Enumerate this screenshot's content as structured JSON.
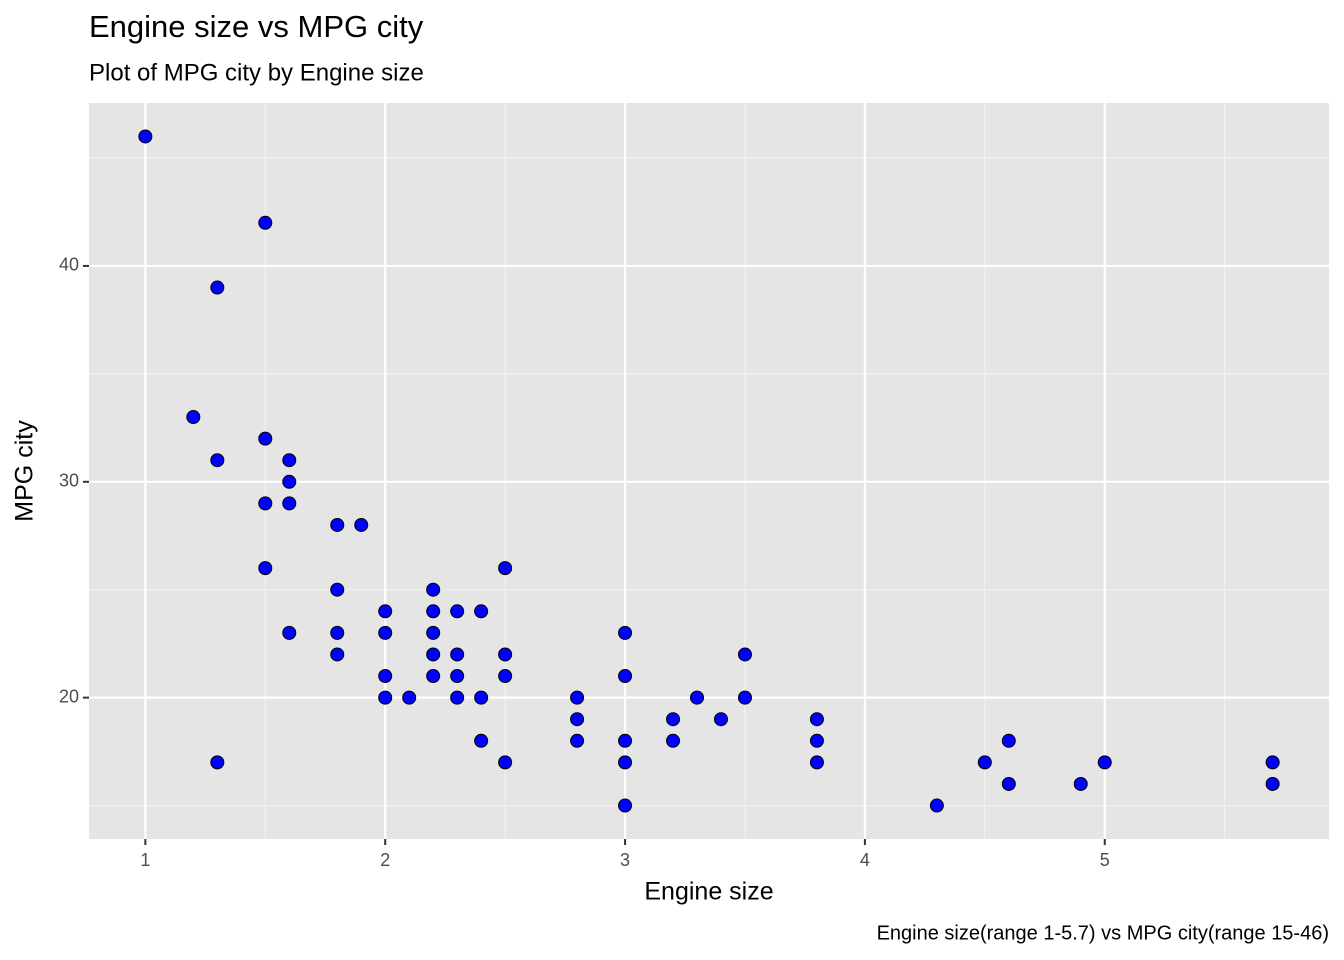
{
  "chart_data": {
    "type": "scatter",
    "title": "Engine size vs MPG city",
    "subtitle": "Plot of MPG city by Engine size",
    "x_label": "Engine size",
    "y_label": "MPG city",
    "caption": "Engine size(range 1-5.7) vs MPG city(range 15-46)",
    "color": "#0000ff",
    "edge_color": "#000000",
    "grid": true,
    "xlim": [
      0.765,
      5.935
    ],
    "ylim": [
      13.45,
      47.55
    ],
    "xticks": [
      1,
      2,
      3,
      4,
      5
    ],
    "yticks": [
      20,
      30,
      40
    ],
    "minor_xticks": [
      1.5,
      2.5,
      3.5,
      4.5,
      5.5
    ],
    "minor_yticks": [
      15,
      25,
      35,
      45
    ],
    "x": [
      1.0,
      1.5,
      1.3,
      1.2,
      1.3,
      1.5,
      1.6,
      1.6,
      1.5,
      1.6,
      1.8,
      1.9,
      1.5,
      2.5,
      1.8,
      2.2,
      2.0,
      2.2,
      2.3,
      2.4,
      1.6,
      1.8,
      2.0,
      2.2,
      3.0,
      1.8,
      2.2,
      2.3,
      2.5,
      3.5,
      2.0,
      2.2,
      2.3,
      2.5,
      3.0,
      2.0,
      2.1,
      2.3,
      2.4,
      2.8,
      3.3,
      3.5,
      2.8,
      3.2,
      3.4,
      3.8,
      2.4,
      2.8,
      3.0,
      3.2,
      3.8,
      4.6,
      1.3,
      2.5,
      3.0,
      3.8,
      4.5,
      5.0,
      5.7,
      4.6,
      4.9,
      5.7,
      3.0,
      4.3
    ],
    "values": [
      46,
      42,
      39,
      33,
      31,
      32,
      31,
      30,
      29,
      29,
      28,
      28,
      26,
      26,
      25,
      25,
      24,
      24,
      24,
      24,
      23,
      23,
      23,
      23,
      23,
      22,
      22,
      22,
      22,
      22,
      21,
      21,
      21,
      21,
      21,
      20,
      20,
      20,
      20,
      20,
      20,
      20,
      19,
      19,
      19,
      19,
      18,
      18,
      18,
      18,
      18,
      18,
      17,
      17,
      17,
      17,
      17,
      17,
      17,
      16,
      16,
      16,
      15,
      15
    ]
  }
}
